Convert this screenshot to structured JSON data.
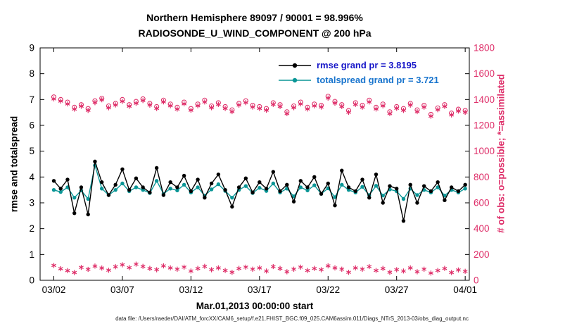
{
  "figure": {
    "title_line1": "Northern Hemisphere 89097 / 90001 = 98.996%",
    "title_line2": "RADIOSONDE_U_WIND_COMPONENT @ 200 hPa",
    "xlabel": "Mar.01,2013 00:00:00 start",
    "ylabel_left": "rmse and totalspread",
    "ylabel_right": "# of obs: o=possible; *=assimilated",
    "datafile_caption": "data file: /Users/raeder/DAI/ATM_forcXX/CAM6_setup/f.e21.FHIST_BGC.f09_025.CAM6assim.011/Diags_NTrS_2013-03/obs_diag_output.nc"
  },
  "legend": {
    "rmse_label": "rmse grand pr = 3.8195",
    "totalspread_label": "totalspread grand pr = 3.721"
  },
  "colors": {
    "rmse": "#000000",
    "totalspread": "#0a9696",
    "obs_counts": "#de2d68",
    "legend_rmse_text": "#1515c8",
    "legend_totalspread_text": "#1874cd",
    "axis": "#000000"
  },
  "chart_data": {
    "type": "line",
    "title_lines": [
      "Northern Hemisphere 89097 / 90001 = 98.996%",
      "RADIOSONDE_U_WIND_COMPONENT @ 200 hPa"
    ],
    "x_axis": {
      "label": "Mar.01,2013 00:00:00 start",
      "tick_days": [
        1,
        6,
        11,
        16,
        21,
        26,
        31
      ],
      "tick_labels": [
        "03/02",
        "03/07",
        "03/12",
        "03/17",
        "03/22",
        "03/27",
        "04/01"
      ],
      "range_days": [
        0,
        31.3
      ]
    },
    "y_left": {
      "label": "rmse and totalspread",
      "ticks": [
        0,
        1,
        2,
        3,
        4,
        5,
        6,
        7,
        8,
        9
      ],
      "range": [
        0,
        9
      ]
    },
    "y_right": {
      "label": "# of obs: o=possible; *=assimilated",
      "ticks": [
        0,
        200,
        400,
        600,
        800,
        1000,
        1200,
        1400,
        1600,
        1800
      ],
      "range": [
        0,
        1800
      ]
    },
    "grid": false,
    "legend_position": "top-right-inside",
    "x_days": [
      1,
      1.5,
      2,
      2.5,
      3,
      3.5,
      4,
      4.5,
      5,
      5.5,
      6,
      6.5,
      7,
      7.5,
      8,
      8.5,
      9,
      9.5,
      10,
      10.5,
      11,
      11.5,
      12,
      12.5,
      13,
      13.5,
      14,
      14.5,
      15,
      15.5,
      16,
      16.5,
      17,
      17.5,
      18,
      18.5,
      19,
      19.5,
      20,
      20.5,
      21,
      21.5,
      22,
      22.5,
      23,
      23.5,
      24,
      24.5,
      25,
      25.5,
      26,
      26.5,
      27,
      27.5,
      28,
      28.5,
      29,
      29.5,
      30,
      30.5,
      31
    ],
    "series": [
      {
        "name": "obs-possible",
        "legend": "o=possible",
        "axis": "right",
        "draw": "markers",
        "marker": "circle",
        "color_key": "obs_counts",
        "values": [
          1420,
          1400,
          1380,
          1340,
          1360,
          1330,
          1390,
          1410,
          1350,
          1370,
          1400,
          1360,
          1385,
          1405,
          1370,
          1345,
          1395,
          1365,
          1340,
          1380,
          1330,
          1365,
          1395,
          1350,
          1375,
          1345,
          1320,
          1370,
          1390,
          1355,
          1345,
          1330,
          1375,
          1360,
          1305,
          1350,
          1380,
          1340,
          1365,
          1355,
          1425,
          1385,
          1360,
          1315,
          1375,
          1355,
          1395,
          1340,
          1365,
          1305,
          1345,
          1330,
          1370,
          1320,
          1355,
          1285,
          1335,
          1360,
          1295,
          1325,
          1315
        ]
      },
      {
        "name": "obs-assimilated",
        "legend": "*=assimilated",
        "axis": "right",
        "draw": "markers",
        "marker": "asterisk",
        "color_key": "obs_counts",
        "values": [
          1405,
          1388,
          1366,
          1326,
          1348,
          1316,
          1376,
          1398,
          1336,
          1358,
          1386,
          1348,
          1371,
          1392,
          1357,
          1331,
          1382,
          1352,
          1326,
          1367,
          1317,
          1352,
          1381,
          1337,
          1362,
          1331,
          1306,
          1357,
          1376,
          1342,
          1331,
          1317,
          1362,
          1346,
          1291,
          1337,
          1366,
          1327,
          1351,
          1342,
          1411,
          1372,
          1346,
          1301,
          1362,
          1341,
          1381,
          1327,
          1351,
          1291,
          1332,
          1316,
          1357,
          1306,
          1341,
          1271,
          1321,
          1347,
          1281,
          1311,
          1301
        ]
      },
      {
        "name": "obs-low-band",
        "legend": "",
        "axis": "right",
        "draw": "markers",
        "marker": "asterisk",
        "color_key": "obs_counts",
        "values": [
          115,
          90,
          75,
          60,
          100,
          85,
          110,
          95,
          78,
          105,
          120,
          98,
          125,
          108,
          92,
          82,
          112,
          96,
          86,
          102,
          72,
          92,
          108,
          82,
          96,
          76,
          62,
          92,
          102,
          86,
          96,
          72,
          106,
          92,
          66,
          86,
          102,
          76,
          92,
          82,
          112,
          96,
          86,
          62,
          96,
          86,
          106,
          76,
          92,
          62,
          82,
          72,
          96,
          66,
          86,
          56,
          76,
          92,
          60,
          80,
          70
        ]
      },
      {
        "name": "totalspread",
        "legend": "totalspread grand pr = 3.721",
        "axis": "left",
        "draw": "line+dot",
        "grand_pr": 3.721,
        "color_key": "totalspread",
        "values": [
          3.5,
          3.42,
          3.6,
          3.2,
          3.48,
          3.15,
          4.45,
          3.55,
          3.3,
          3.5,
          3.75,
          3.45,
          3.6,
          3.5,
          3.38,
          3.85,
          3.35,
          3.55,
          3.48,
          3.7,
          3.4,
          3.6,
          3.28,
          3.52,
          3.72,
          3.46,
          3.2,
          3.5,
          3.65,
          3.38,
          3.58,
          3.46,
          3.75,
          3.4,
          3.55,
          3.25,
          3.6,
          3.48,
          3.68,
          3.35,
          3.56,
          3.22,
          3.7,
          3.5,
          3.4,
          3.62,
          3.3,
          3.66,
          3.28,
          3.52,
          3.45,
          3.15,
          3.55,
          3.3,
          3.5,
          3.4,
          3.6,
          3.28,
          3.5,
          3.4,
          3.55
        ]
      },
      {
        "name": "rmse",
        "legend": "rmse grand pr = 3.8195",
        "axis": "left",
        "draw": "line+dot",
        "grand_pr": 3.8195,
        "color_key": "rmse",
        "values": [
          3.85,
          3.55,
          3.9,
          2.6,
          3.6,
          2.55,
          4.6,
          3.8,
          3.3,
          3.7,
          4.3,
          3.5,
          3.95,
          3.6,
          3.4,
          4.35,
          3.3,
          3.8,
          3.6,
          4.05,
          3.45,
          3.9,
          3.2,
          3.75,
          4.1,
          3.5,
          2.85,
          3.6,
          3.95,
          3.4,
          3.8,
          3.55,
          4.2,
          3.45,
          3.7,
          3.05,
          3.85,
          3.6,
          4.0,
          3.35,
          3.75,
          2.9,
          4.25,
          3.6,
          3.45,
          3.9,
          3.2,
          4.1,
          3.0,
          3.65,
          3.55,
          2.3,
          3.7,
          3.0,
          3.65,
          3.45,
          3.8,
          3.1,
          3.6,
          3.45,
          3.7
        ]
      }
    ]
  }
}
